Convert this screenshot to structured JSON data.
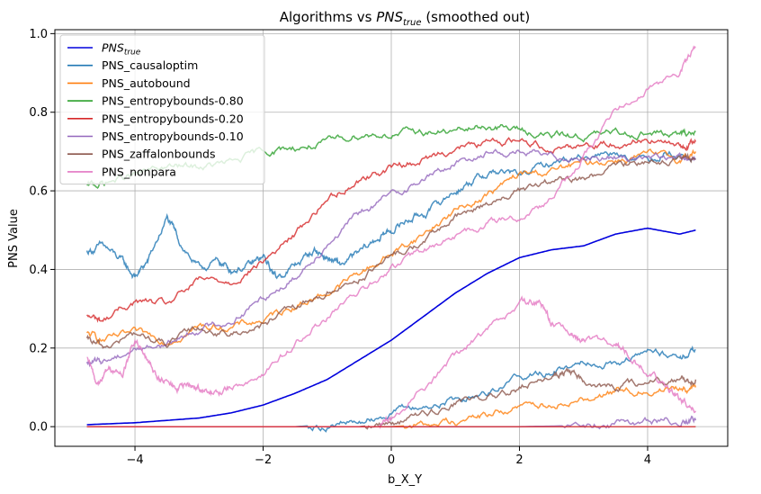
{
  "chart_data": {
    "type": "line",
    "title_prefix": "Algorithms vs ",
    "title_symbol": "PNS",
    "title_subscript": "true",
    "title_suffix": " (smoothed out)",
    "xlabel": "b_X_Y",
    "ylabel": "PNS Value",
    "xlim": [
      -5.25,
      5.25
    ],
    "ylim": [
      -0.05,
      1.01
    ],
    "xticks": [
      -4,
      -2,
      0,
      2,
      4
    ],
    "xtick_labels": [
      "−4",
      "−2",
      "0",
      "2",
      "4"
    ],
    "yticks": [
      0.0,
      0.2,
      0.4,
      0.6,
      0.8,
      1.0
    ],
    "ytick_labels": [
      "0.0",
      "0.2",
      "0.4",
      "0.6",
      "0.8",
      "1.0"
    ],
    "grid": true,
    "legend_position": "upper-left",
    "series": [
      {
        "name": "PNS_true",
        "legend_symbol": "PNS",
        "legend_subscript": "true",
        "color": "#0000dd",
        "x": [
          -4.75,
          -4.0,
          -3.0,
          -2.5,
          -2.0,
          -1.5,
          -1.0,
          -0.5,
          0.0,
          0.5,
          1.0,
          1.5,
          2.0,
          2.5,
          3.0,
          3.5,
          4.0,
          4.5,
          4.75
        ],
        "y": [
          0.005,
          0.01,
          0.022,
          0.035,
          0.055,
          0.085,
          0.12,
          0.17,
          0.22,
          0.28,
          0.34,
          0.39,
          0.43,
          0.45,
          0.46,
          0.49,
          0.505,
          0.49,
          0.5
        ]
      },
      {
        "name": "PNS_causaloptim",
        "color": "#1f77b4",
        "x": [
          -4.75,
          -4.5,
          -4.2,
          -4.0,
          -3.8,
          -3.5,
          -3.3,
          -3.0,
          -2.7,
          -2.5,
          -2.2,
          -2.0,
          -1.8,
          -1.5,
          -1.2,
          -1.0,
          -0.8,
          -0.5,
          -0.2,
          0.0,
          0.3,
          0.6,
          1.0,
          1.3,
          1.6,
          2.0,
          2.5,
          3.0,
          3.5,
          4.0,
          4.3,
          4.75
        ],
        "y": [
          0.445,
          0.46,
          0.42,
          0.38,
          0.42,
          0.53,
          0.47,
          0.4,
          0.42,
          0.4,
          0.41,
          0.43,
          0.38,
          0.41,
          0.45,
          0.43,
          0.41,
          0.44,
          0.48,
          0.5,
          0.53,
          0.55,
          0.6,
          0.63,
          0.65,
          0.64,
          0.67,
          0.69,
          0.7,
          0.68,
          0.7,
          0.68
        ]
      },
      {
        "name": "PNS_autobound",
        "color": "#ff7f0e",
        "x": [
          -4.75,
          -4.5,
          -4.0,
          -3.5,
          -3.0,
          -2.5,
          -2.0,
          -1.5,
          -1.0,
          -0.5,
          0.0,
          0.5,
          1.0,
          1.5,
          2.0,
          2.5,
          3.0,
          3.5,
          4.0,
          4.5,
          4.75
        ],
        "y": [
          0.235,
          0.22,
          0.235,
          0.22,
          0.255,
          0.255,
          0.27,
          0.31,
          0.34,
          0.39,
          0.44,
          0.49,
          0.55,
          0.59,
          0.64,
          0.65,
          0.67,
          0.68,
          0.69,
          0.68,
          0.7
        ]
      },
      {
        "name": "PNS_entropybounds-0.80",
        "color": "#2ca02c",
        "x": [
          -4.75,
          -4.5,
          -4.0,
          -3.5,
          -3.0,
          -2.5,
          -2.0,
          -1.5,
          -1.0,
          -0.5,
          0.0,
          0.5,
          1.0,
          1.5,
          2.0,
          2.5,
          3.0,
          3.5,
          4.0,
          4.5,
          4.75
        ],
        "y": [
          0.61,
          0.62,
          0.64,
          0.66,
          0.66,
          0.67,
          0.7,
          0.71,
          0.72,
          0.745,
          0.745,
          0.75,
          0.75,
          0.765,
          0.755,
          0.74,
          0.74,
          0.745,
          0.75,
          0.74,
          0.75
        ]
      },
      {
        "name": "PNS_entropybounds-0.20",
        "color": "#d62728",
        "x": [
          -4.75,
          -4.5,
          -4.0,
          -3.5,
          -3.0,
          -2.5,
          -2.0,
          -1.5,
          -1.0,
          -0.5,
          0.0,
          0.5,
          1.0,
          1.5,
          2.0,
          2.5,
          3.0,
          3.5,
          4.0,
          4.5,
          4.75
        ],
        "y": [
          0.28,
          0.27,
          0.32,
          0.31,
          0.37,
          0.37,
          0.42,
          0.49,
          0.58,
          0.63,
          0.66,
          0.68,
          0.71,
          0.72,
          0.73,
          0.71,
          0.72,
          0.72,
          0.735,
          0.71,
          0.725
        ]
      },
      {
        "name": "PNS_entropybounds-0.10",
        "color": "#9467bd",
        "x": [
          -4.75,
          -4.5,
          -4.0,
          -3.5,
          -3.0,
          -2.5,
          -2.0,
          -1.5,
          -1.0,
          -0.5,
          0.0,
          0.5,
          1.0,
          1.5,
          2.0,
          2.5,
          3.0,
          3.5,
          4.0,
          4.5,
          4.75
        ],
        "y": [
          0.16,
          0.165,
          0.2,
          0.21,
          0.25,
          0.27,
          0.33,
          0.38,
          0.47,
          0.54,
          0.59,
          0.63,
          0.67,
          0.7,
          0.7,
          0.685,
          0.69,
          0.685,
          0.685,
          0.68,
          0.68
        ]
      },
      {
        "name": "PNS_zaffalonbounds",
        "color": "#8c564b",
        "x": [
          -4.75,
          -4.5,
          -4.0,
          -3.5,
          -3.0,
          -2.5,
          -2.0,
          -1.5,
          -1.0,
          -0.5,
          0.0,
          0.5,
          1.0,
          1.5,
          2.0,
          2.5,
          3.0,
          3.5,
          4.0,
          4.5,
          4.75
        ],
        "y": [
          0.22,
          0.2,
          0.235,
          0.21,
          0.25,
          0.235,
          0.26,
          0.3,
          0.34,
          0.38,
          0.43,
          0.47,
          0.53,
          0.57,
          0.6,
          0.62,
          0.63,
          0.66,
          0.68,
          0.68,
          0.68
        ]
      },
      {
        "name": "PNS_nonpara",
        "color": "#e377c2",
        "x": [
          -4.75,
          -4.6,
          -4.4,
          -4.2,
          -4.0,
          -3.8,
          -3.6,
          -3.4,
          -3.2,
          -3.0,
          -2.8,
          -2.5,
          -2.0,
          -1.5,
          -1.0,
          -0.5,
          0.0,
          0.5,
          1.0,
          1.5,
          2.0,
          2.5,
          3.0,
          3.5,
          4.0,
          4.5,
          4.75
        ],
        "y": [
          0.17,
          0.11,
          0.15,
          0.13,
          0.22,
          0.16,
          0.12,
          0.1,
          0.1,
          0.1,
          0.08,
          0.1,
          0.14,
          0.21,
          0.28,
          0.34,
          0.4,
          0.45,
          0.48,
          0.52,
          0.53,
          0.58,
          0.69,
          0.8,
          0.87,
          0.9,
          0.965
        ]
      },
      {
        "name": "",
        "color": "#1f77b4",
        "x": [
          -4.75,
          -1.5,
          -1.0,
          -0.5,
          0.0,
          0.5,
          1.0,
          1.5,
          2.0,
          2.5,
          3.0,
          3.5,
          4.0,
          4.5,
          4.75
        ],
        "y": [
          0.0,
          0.0,
          0.005,
          0.01,
          0.04,
          0.05,
          0.07,
          0.09,
          0.13,
          0.14,
          0.17,
          0.165,
          0.19,
          0.18,
          0.195
        ]
      },
      {
        "name": "",
        "color": "#ff7f0e",
        "x": [
          -4.75,
          0.0,
          0.5,
          1.0,
          1.5,
          2.0,
          2.5,
          3.0,
          3.5,
          4.0,
          4.5,
          4.75
        ],
        "y": [
          0.0,
          0.0,
          0.005,
          0.015,
          0.03,
          0.05,
          0.06,
          0.075,
          0.09,
          0.095,
          0.1,
          0.1
        ]
      },
      {
        "name": "",
        "color": "#8c564b",
        "x": [
          -4.75,
          -0.5,
          0.0,
          0.5,
          1.0,
          1.5,
          2.0,
          2.5,
          2.7,
          3.0,
          3.5,
          4.0,
          4.5,
          4.75
        ],
        "y": [
          0.0,
          0.0,
          0.01,
          0.03,
          0.06,
          0.08,
          0.1,
          0.13,
          0.14,
          0.12,
          0.1,
          0.11,
          0.12,
          0.12
        ]
      },
      {
        "name": "",
        "color": "#9467bd",
        "x": [
          -4.75,
          2.0,
          3.0,
          3.5,
          4.0,
          4.5,
          4.75
        ],
        "y": [
          0.0,
          0.0,
          0.003,
          0.006,
          0.01,
          0.015,
          0.016
        ]
      },
      {
        "name": "",
        "color": "#e377c2",
        "x": [
          -4.75,
          -0.2,
          0.0,
          0.5,
          1.0,
          1.5,
          2.0,
          2.3,
          2.5,
          2.8,
          3.0,
          3.5,
          3.7,
          4.0,
          4.3,
          4.5,
          4.75
        ],
        "y": [
          0.0,
          0.0,
          0.02,
          0.1,
          0.18,
          0.25,
          0.31,
          0.32,
          0.26,
          0.23,
          0.22,
          0.21,
          0.18,
          0.14,
          0.11,
          0.07,
          0.04
        ]
      },
      {
        "name": "",
        "color": "#d62728",
        "x": [
          -4.75,
          4.75
        ],
        "y": [
          0.0,
          0.0
        ]
      }
    ]
  }
}
